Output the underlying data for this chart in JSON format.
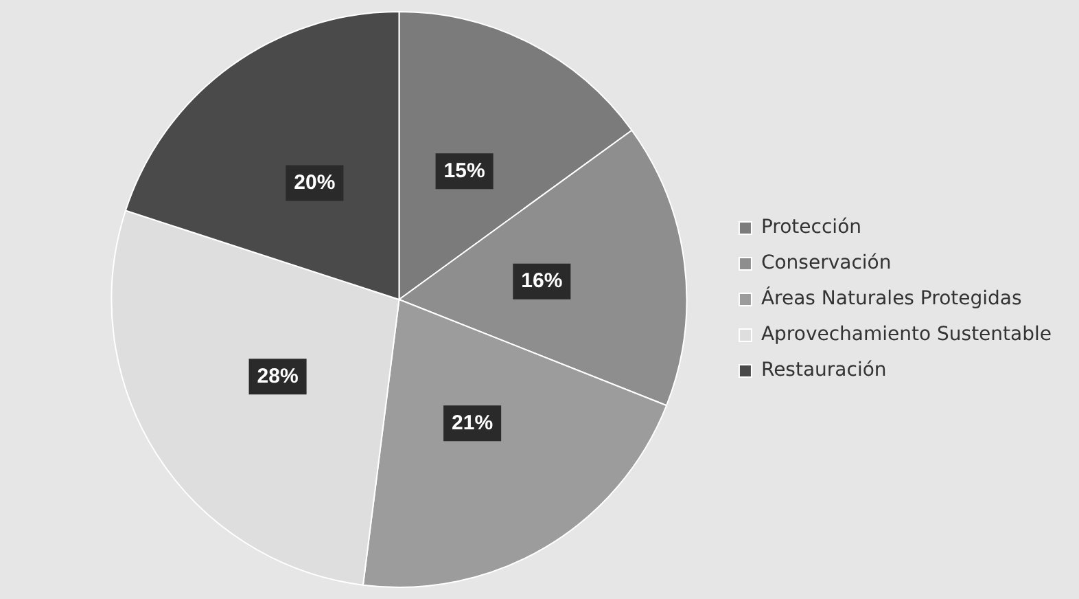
{
  "chart_data": {
    "type": "pie",
    "categories": [
      "Protección",
      "Conservación",
      "Áreas Naturales Protegidas",
      "Aprovechamiento Sustentable",
      "Restauración"
    ],
    "values": [
      15,
      16,
      21,
      28,
      20
    ],
    "colors": [
      "#7b7b7b",
      "#8e8e8e",
      "#9c9c9c",
      "#dedede",
      "#4a4a4a"
    ],
    "value_labels": [
      "15%",
      "16%",
      "21%",
      "28%",
      "20%"
    ],
    "legend": "right"
  }
}
